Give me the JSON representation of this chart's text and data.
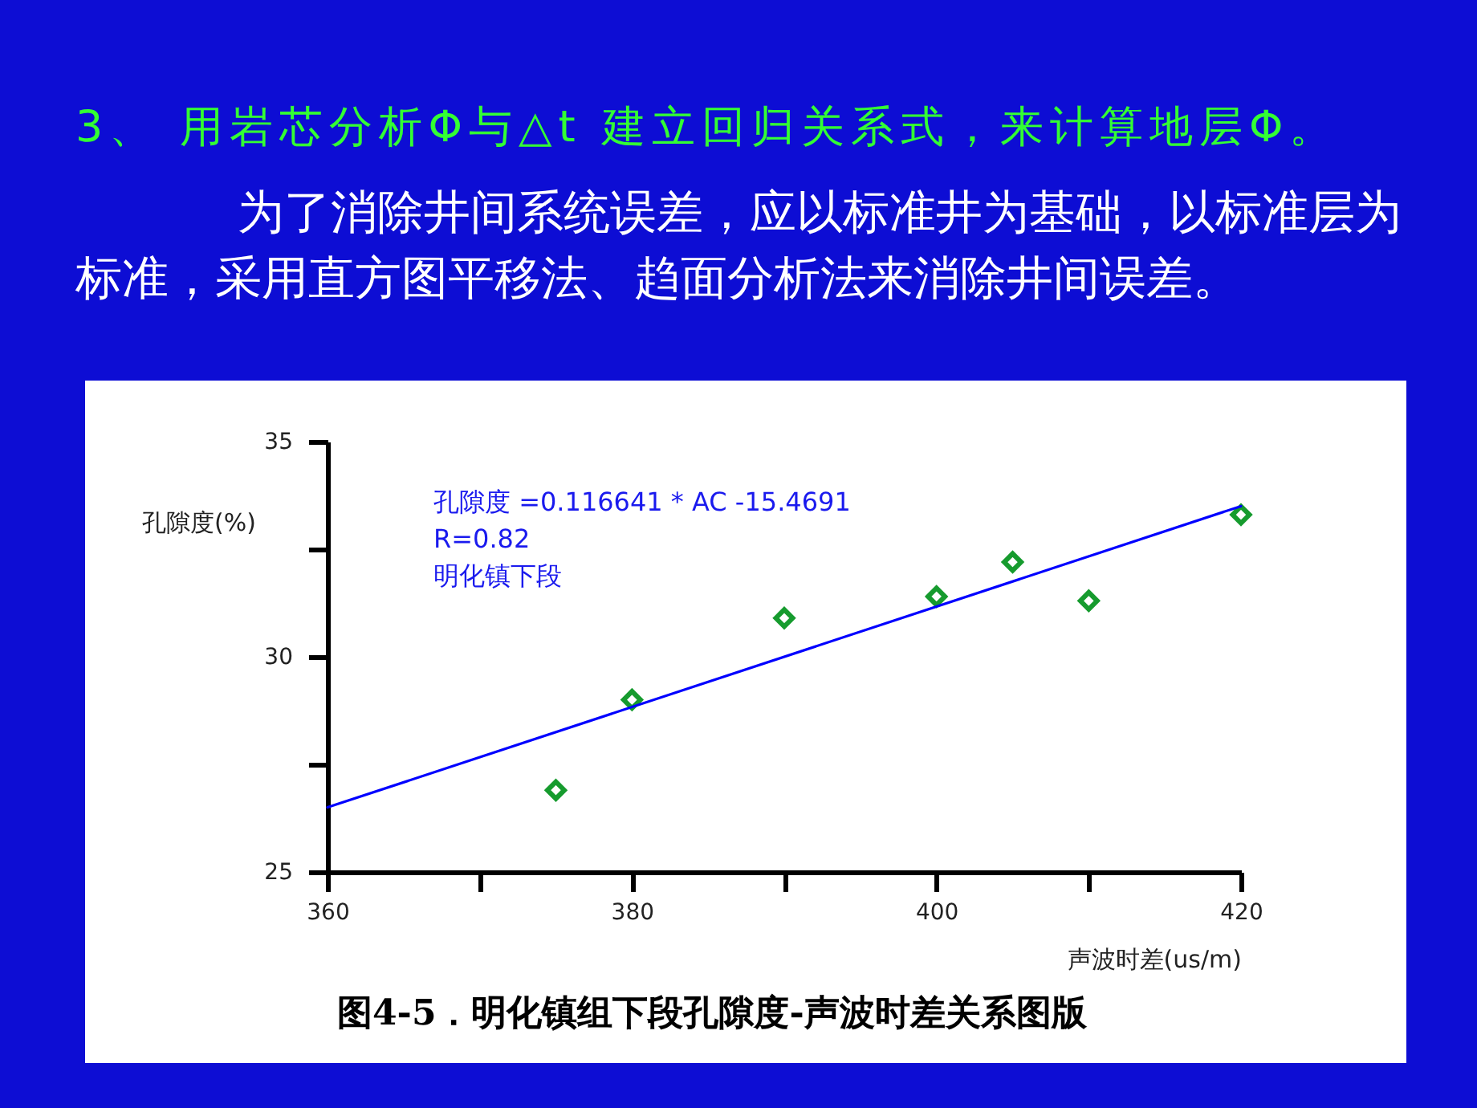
{
  "chart_data": {
    "type": "scatter",
    "title": "3、 用岩芯分析Φ与△t 建立回归关系式，来计算地层Φ。",
    "subtitle": "为了消除井间系统误差，应以标准井为基础，以标准层为标准，采用直方图平移法、趋面分析法来消除井间误差。",
    "xlabel": "声波时差(us/m)",
    "ylabel": "孔隙度(%)",
    "annotations": [
      "孔隙度 =0.116641 * AC -15.4691",
      "R=0.82",
      "明化镇下段",
      "图4-5．明化镇组下段孔隙度-声波时差关系图版"
    ],
    "xlim": [
      360,
      420
    ],
    "xticks": [
      360,
      {
        "value": 370,
        "label": null
      },
      380,
      {
        "value": 390,
        "label": null
      },
      400,
      {
        "value": 410,
        "label": null
      },
      420
    ],
    "ylim": [
      25,
      35
    ],
    "yticks": [
      25,
      {
        "value": 27.5,
        "label": null
      },
      30,
      {
        "value": 32.5,
        "label": null
      },
      35
    ],
    "grid": false,
    "marker": "diamond",
    "series": [
      {
        "color": "#169b2e",
        "x": [
          375,
          380,
          390,
          400,
          405,
          410,
          420
        ],
        "values": [
          26.9,
          29.0,
          30.9,
          31.4,
          32.2,
          31.3,
          33.3
        ]
      },
      {
        "type": "line",
        "color": "#0000ff",
        "marker": "none",
        "x": [
          360,
          420
        ],
        "values": [
          26.5,
          33.5
        ]
      }
    ]
  }
}
